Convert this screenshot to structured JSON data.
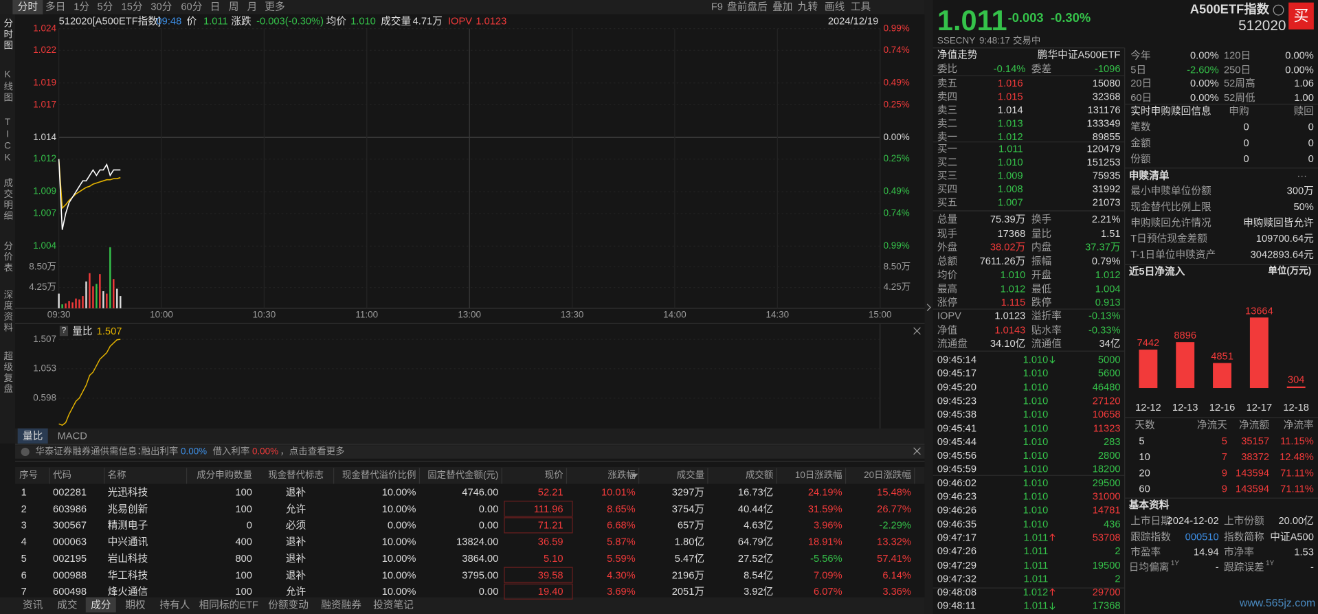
{
  "toolbar": {
    "periods": [
      "分时",
      "多日",
      "1分",
      "5分",
      "15分",
      "30分",
      "60分",
      "日",
      "周",
      "月",
      "更多"
    ],
    "tools": [
      "F9",
      "盘前盘后",
      "叠加",
      "九转",
      "画线",
      "工具"
    ]
  },
  "side_tabs": [
    "分时图",
    "K线图",
    "TICK",
    "成交明细",
    "分价表",
    "深度资料",
    "超级复盘"
  ],
  "quote_header": {
    "code": "512020[A500ETF指数]",
    "time": "09:48",
    "fields": [
      {
        "label": "价",
        "value": "1.011"
      },
      {
        "label": "涨跌",
        "value": "-0.003(-0.30%)"
      },
      {
        "label": "均价",
        "value": "1.010"
      },
      {
        "label": "成交量",
        "value": "4.71万"
      },
      {
        "label": "IOPV",
        "value": "1.0123"
      }
    ],
    "date": "2024/12/19"
  },
  "intraday": {
    "ylim": [
      1.004,
      1.024
    ],
    "yticks": [
      1.024,
      1.022,
      1.019,
      1.017,
      1.014,
      1.012,
      1.009,
      1.007,
      1.004
    ],
    "pct_ticks": [
      "0.99%",
      "0.74%",
      "0.49%",
      "0.25%",
      "0.00%",
      "0.25%",
      "0.49%",
      "0.74%",
      "0.99%"
    ],
    "time_ticks": [
      "09:30",
      "10:00",
      "10:30",
      "11:00",
      "13:00",
      "13:30",
      "14:00",
      "14:30",
      "15:00"
    ],
    "price": [
      1.012,
      1.0055,
      1.007,
      1.008,
      1.0085,
      1.009,
      1.0095,
      1.01,
      1.01,
      1.0105,
      1.011,
      1.0105,
      1.011,
      1.011,
      1.0115,
      1.0105,
      1.011,
      1.011,
      1.011
    ],
    "avg": [
      1.012,
      1.0075,
      1.0078,
      1.0082,
      1.0085,
      1.0088,
      1.009,
      1.0092,
      1.0094,
      1.0095,
      1.0097,
      1.0098,
      1.0099,
      1.01,
      1.0101,
      1.0101,
      1.0102,
      1.0102,
      1.0103
    ],
    "volume_ylim": [
      0,
      127500
    ],
    "volume_ticks": [
      {
        "value": 85000,
        "label": "8.50万"
      },
      {
        "value": 42500,
        "label": "4.25万"
      }
    ],
    "volume": [
      30000,
      8000,
      10000,
      15000,
      12000,
      20000,
      18000,
      25000,
      55000,
      72000,
      45000,
      50000,
      70000,
      35000,
      30000,
      125000,
      60000,
      40000,
      25000
    ]
  },
  "indicator": {
    "help": "?",
    "name": "量比",
    "current": "1.507",
    "ylim": [
      0.17,
      1.507
    ],
    "yticks": [
      1.507,
      1.053,
      0.598
    ],
    "values": [
      0.2,
      0.18,
      0.22,
      0.35,
      0.45,
      0.55,
      0.6,
      0.7,
      0.8,
      0.95,
      1.0,
      1.1,
      1.2,
      1.25,
      1.3,
      1.4,
      1.45,
      1.5,
      1.507
    ]
  },
  "indicator_tabs": [
    "量比",
    "MACD"
  ],
  "notice": [
    "华泰证券融券通供需信息：",
    "融出利率",
    "0.00%",
    "借入利率",
    "0.00%",
    "，点击查看更多"
  ],
  "table": {
    "headers": [
      "序号",
      "代码",
      "名称",
      "成分申购数量",
      "现金替代标志",
      "现金替代溢价比例",
      "固定替代金额(元)",
      "现价",
      "涨跌幅",
      "成交量",
      "成交额",
      "10日涨跌幅",
      "20日涨跌幅"
    ],
    "rows": [
      [
        "1",
        "002281",
        "光迅科技",
        "100",
        "退补",
        "10.00%",
        "4746.00",
        "52.21",
        "10.01%",
        "3297万",
        "16.73亿",
        "24.19%",
        "15.48%"
      ],
      [
        "2",
        "603986",
        "兆易创新",
        "100",
        "允许",
        "10.00%",
        "0.00",
        "111.96",
        "8.65%",
        "3754万",
        "40.44亿",
        "31.59%",
        "26.77%"
      ],
      [
        "3",
        "300567",
        "精测电子",
        "0",
        "必须",
        "0.00%",
        "0.00",
        "71.21",
        "6.68%",
        "657万",
        "4.63亿",
        "3.96%",
        "-2.29%"
      ],
      [
        "4",
        "000063",
        "中兴通讯",
        "400",
        "退补",
        "10.00%",
        "13824.00",
        "36.59",
        "5.87%",
        "1.80亿",
        "64.79亿",
        "18.91%",
        "13.32%"
      ],
      [
        "5",
        "002195",
        "岩山科技",
        "800",
        "退补",
        "10.00%",
        "3864.00",
        "5.10",
        "5.59%",
        "5.47亿",
        "27.52亿",
        "-5.56%",
        "57.41%"
      ],
      [
        "6",
        "000988",
        "华工科技",
        "100",
        "退补",
        "10.00%",
        "3795.00",
        "39.58",
        "4.30%",
        "2196万",
        "8.54亿",
        "7.09%",
        "6.14%"
      ],
      [
        "7",
        "600498",
        "烽火通信",
        "100",
        "允许",
        "10.00%",
        "0.00",
        "19.40",
        "3.69%",
        "2051万",
        "3.92亿",
        "6.07%",
        "3.36%"
      ]
    ]
  },
  "bottom_tabs": [
    "资讯",
    "成交",
    "成分",
    "期权",
    "持有人",
    "相同标的ETF",
    "份额变动",
    "融资融券",
    "投资笔记"
  ],
  "quote": {
    "price": "1.011",
    "change": "-0.003",
    "pct": "-0.30%",
    "name": "A500ETF指数",
    "code": "512020",
    "market": "SSE",
    "currency": "CNY",
    "time": "9:48:17",
    "status": "交易中",
    "buy": "买"
  },
  "nav": [
    "净值走势",
    "鹏华中证A500ETF"
  ],
  "ratio": [
    [
      "委比",
      "-0.14%",
      "委差",
      "-1096"
    ]
  ],
  "asks": [
    [
      "卖五",
      "1.016",
      "15080"
    ],
    [
      "卖四",
      "1.015",
      "32368"
    ],
    [
      "卖三",
      "1.014",
      "131176"
    ],
    [
      "卖二",
      "1.013",
      "133349"
    ],
    [
      "卖一",
      "1.012",
      "89855"
    ]
  ],
  "bids": [
    [
      "买一",
      "1.011",
      "120479"
    ],
    [
      "买二",
      "1.010",
      "151253"
    ],
    [
      "买三",
      "1.009",
      "75935"
    ],
    [
      "买四",
      "1.008",
      "31992"
    ],
    [
      "买五",
      "1.007",
      "21073"
    ]
  ],
  "stats": [
    [
      "总量",
      "75.39万",
      "换手",
      "2.21%"
    ],
    [
      "现手",
      "17368",
      "量比",
      "1.51"
    ],
    [
      "外盘",
      "38.02万",
      "内盘",
      "37.37万"
    ],
    [
      "总额",
      "7611.26万",
      "振幅",
      "0.79%"
    ],
    [
      "均价",
      "1.010",
      "开盘",
      "1.012"
    ],
    [
      "最高",
      "1.012",
      "最低",
      "1.004"
    ],
    [
      "涨停",
      "1.115",
      "跌停",
      "0.913"
    ]
  ],
  "iopv": [
    [
      "IOPV",
      "1.0123",
      "溢折率",
      "-0.13%"
    ],
    [
      "净值",
      "1.0143",
      "贴水率",
      "-0.33%"
    ],
    [
      "流通盘",
      "34.10亿",
      "流通值",
      "34亿"
    ]
  ],
  "ticks": [
    [
      "09:45:14",
      "1.010",
      "5000"
    ],
    [
      "09:45:17",
      "1.010",
      "5600"
    ],
    [
      "09:45:20",
      "1.010",
      "46480"
    ],
    [
      "09:45:23",
      "1.010",
      "27120"
    ],
    [
      "09:45:38",
      "1.010",
      "10658"
    ],
    [
      "09:45:41",
      "1.010",
      "11323"
    ],
    [
      "09:45:44",
      "1.010",
      "283"
    ],
    [
      "09:45:56",
      "1.010",
      "2800"
    ],
    [
      "09:45:59",
      "1.010",
      "18200"
    ],
    [
      "09:46:02",
      "1.010",
      "29500"
    ],
    [
      "09:46:23",
      "1.010",
      "31000"
    ],
    [
      "09:46:26",
      "1.010",
      "14781"
    ],
    [
      "09:46:35",
      "1.010",
      "436"
    ],
    [
      "09:47:17",
      "1.011",
      "53708"
    ],
    [
      "09:47:26",
      "1.011",
      "2"
    ],
    [
      "09:47:29",
      "1.011",
      "19500"
    ],
    [
      "09:47:32",
      "1.011",
      "2"
    ],
    [
      "09:48:08",
      "1.012",
      "29700"
    ],
    [
      "09:48:11",
      "1.011",
      "17368"
    ]
  ],
  "periods": [
    [
      "今年",
      "0.00%",
      "120日",
      "0.00%"
    ],
    [
      "5日",
      "-2.60%",
      "250日",
      "0.00%"
    ],
    [
      "20日",
      "0.00%",
      "52周高",
      "1.06"
    ],
    [
      "60日",
      "0.00%",
      "52周低",
      "1.00"
    ]
  ],
  "creation": {
    "title": "实时申购赎回信息",
    "cols": [
      "申购",
      "赎回"
    ],
    "rows": [
      [
        "笔数",
        "0",
        "0"
      ],
      [
        "金额",
        "0",
        "0"
      ],
      [
        "份额",
        "0",
        "0"
      ]
    ]
  },
  "basket": {
    "title": "申赎清单",
    "more": "···",
    "rows": [
      [
        "最小申赎单位份额",
        "300万"
      ],
      [
        "现金替代比例上限",
        "50%"
      ],
      [
        "申购赎回允许情况",
        "申购赎回皆允许"
      ],
      [
        "T日预估现金差额",
        "109700.64元"
      ],
      [
        "T-1日单位申赎资产",
        "3042893.64元"
      ]
    ]
  },
  "net_inflow": {
    "title": "近5日净流入",
    "unit": "单位(万元)",
    "categories": [
      "12-12",
      "12-13",
      "12-16",
      "12-17",
      "12-18"
    ],
    "values": [
      7442,
      8896,
      4851,
      13664,
      304
    ],
    "table": {
      "headers": [
        "天数",
        "净流天",
        "净流额",
        "净流率"
      ],
      "rows": [
        [
          "5",
          "5",
          "35157",
          "11.15%"
        ],
        [
          "10",
          "7",
          "38372",
          "12.48%"
        ],
        [
          "20",
          "9",
          "143594",
          "71.11%"
        ],
        [
          "60",
          "9",
          "143594",
          "71.11%"
        ]
      ]
    }
  },
  "basic": {
    "title": "基本资料",
    "rows": [
      [
        "上市日期",
        "2024-12-02",
        "上市份额",
        "20.00亿"
      ],
      [
        "跟踪指数",
        "000510",
        "指数简称",
        "中证A500"
      ],
      [
        "市盈率",
        "14.94",
        "市净率",
        "1.53"
      ]
    ],
    "footnote_rows": [
      {
        "label": "日均偏离",
        "sup": "1Y",
        "value": "-"
      },
      {
        "label": "跟踪误差",
        "sup": "1Y",
        "value": "-"
      }
    ]
  },
  "watermark": "www.565jz.com"
}
